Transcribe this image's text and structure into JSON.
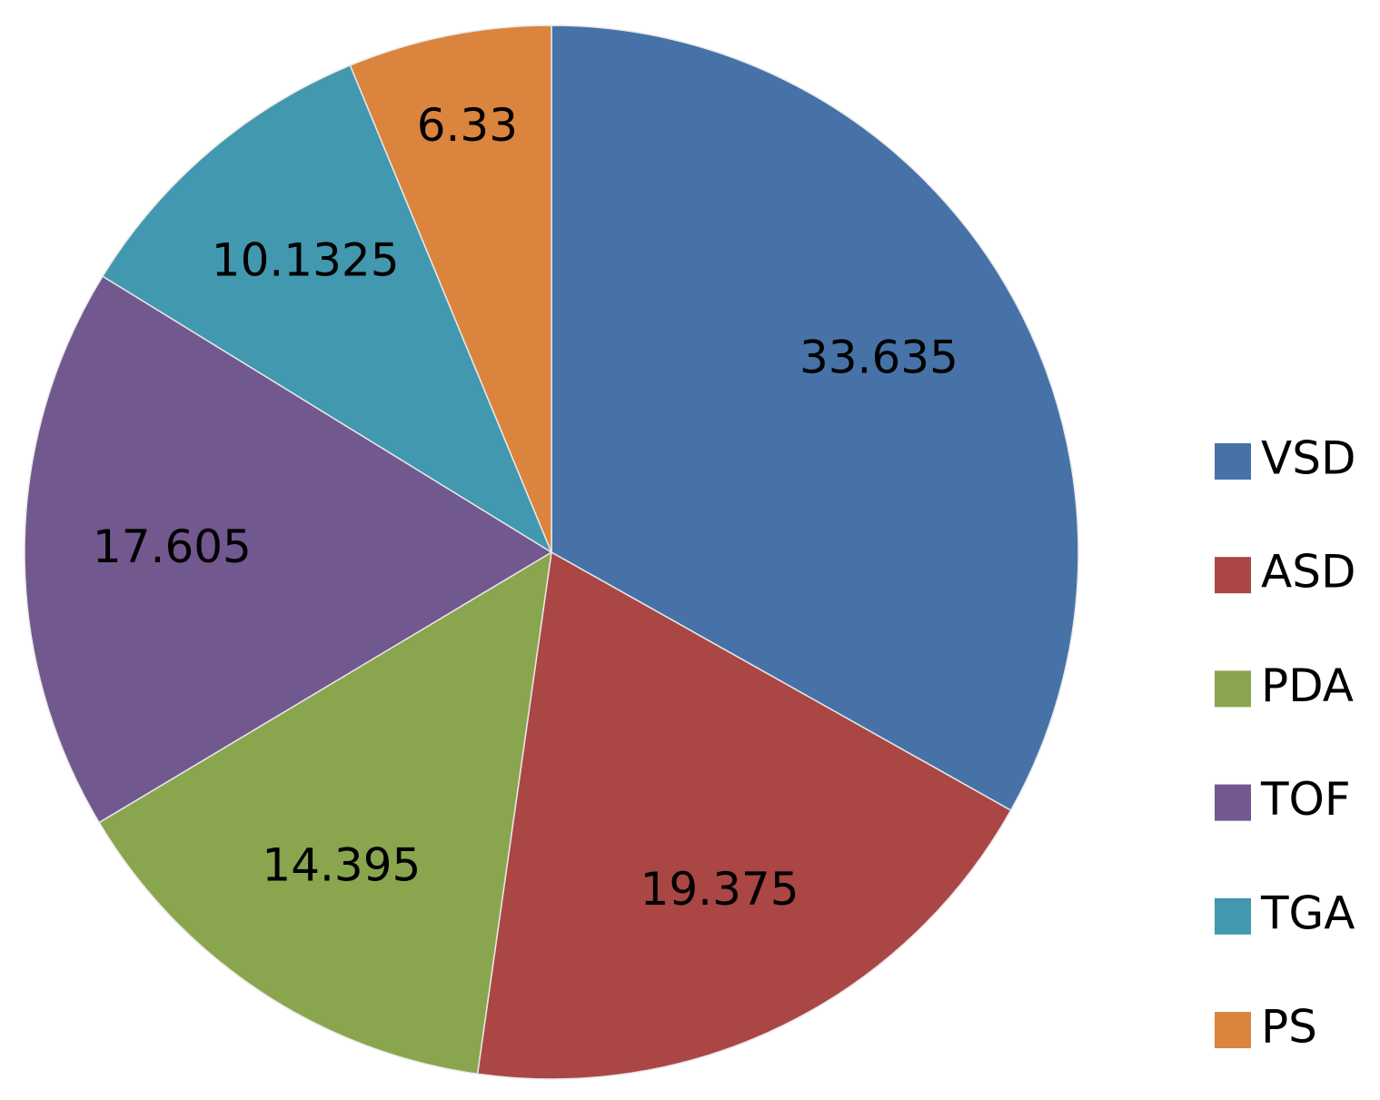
{
  "chart_data": {
    "type": "pie",
    "categories": [
      "VSD",
      "ASD",
      "PDA",
      "TOF",
      "TGA",
      "PS"
    ],
    "values": [
      33.635,
      19.375,
      14.395,
      17.605,
      10.1325,
      6.33
    ],
    "colors": [
      "#4672a8",
      "#aa4644",
      "#89a54e",
      "#71588f",
      "#4198af",
      "#db843d"
    ],
    "legend": "right"
  }
}
